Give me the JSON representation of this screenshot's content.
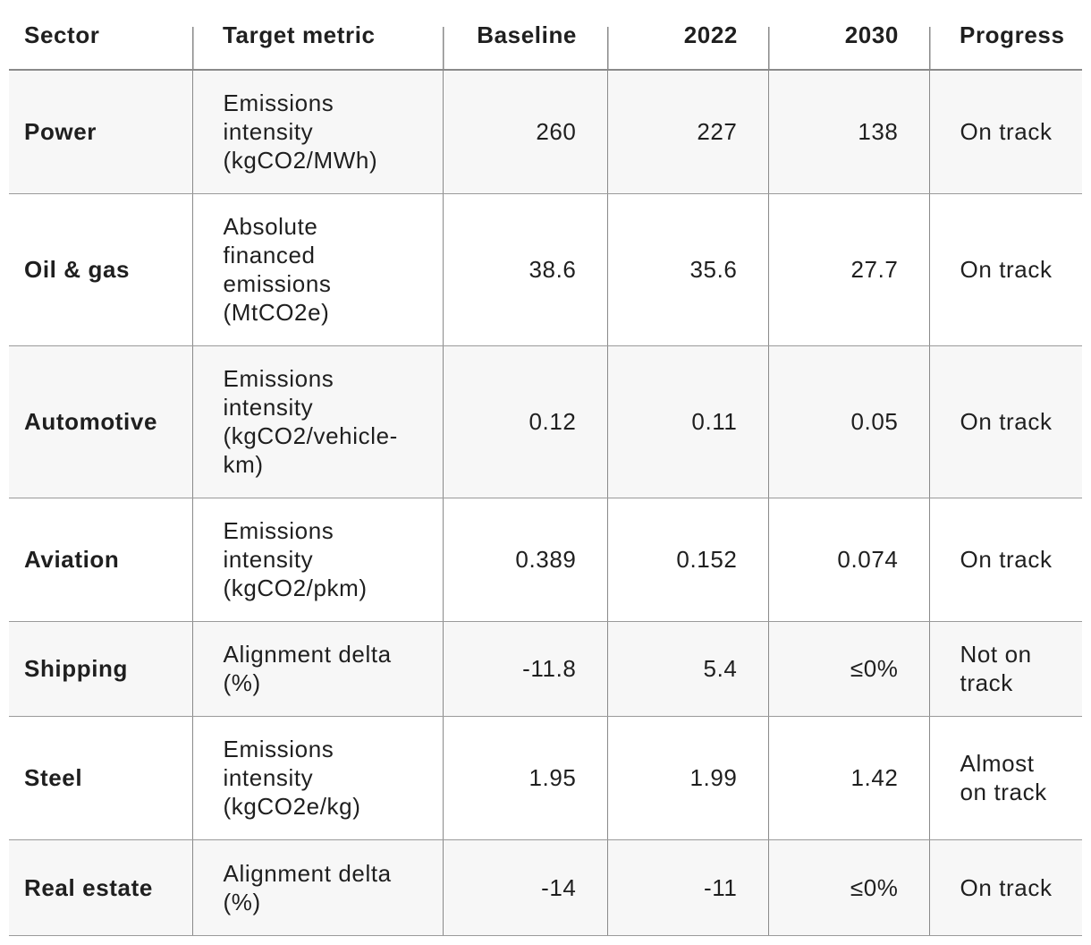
{
  "table": {
    "header": [
      "Sector",
      "Target metric",
      "Baseline",
      "2022",
      "2030",
      "Progress"
    ],
    "rows": [
      [
        "Power",
        "Emissions intensity (kgCO2/MWh)",
        "260",
        "227",
        "138",
        "On track"
      ],
      [
        "Oil & gas",
        "Absolute financed emissions (MtCO2e)",
        "38.6",
        "35.6",
        "27.7",
        "On track"
      ],
      [
        "Automotive",
        "Emissions intensity (kgCO2/vehicle-km)",
        "0.12",
        "0.11",
        "0.05",
        "On track"
      ],
      [
        "Aviation",
        "Emissions intensity (kgCO2/pkm)",
        "0.389",
        "0.152",
        "0.074",
        "On track"
      ],
      [
        "Shipping",
        "Alignment delta (%)",
        "-11.8",
        "5.4",
        "≤0%",
        "Not on track"
      ],
      [
        "Steel",
        "Emissions intensity (kgCO2e/kg)",
        "1.95",
        "1.99",
        "1.42",
        "Almost on track"
      ],
      [
        "Real estate",
        "Alignment delta (%)",
        "-14",
        "-11",
        "≤0%",
        "On track"
      ]
    ]
  }
}
